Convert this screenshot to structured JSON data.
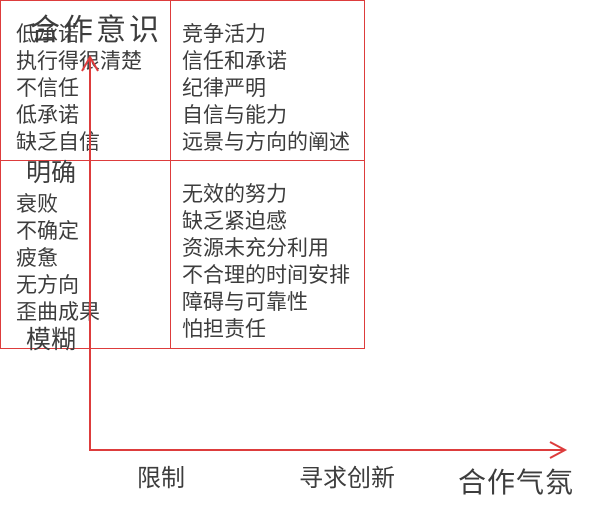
{
  "diagram": {
    "y_axis_title": "合作意识",
    "x_axis_title": "合作气氛",
    "y_axis_labels": {
      "top": "明确",
      "bottom": "模糊"
    },
    "x_axis_labels": {
      "left": "限制",
      "right": "寻求创新"
    },
    "quadrants": {
      "top_left": [
        "低承诺",
        "执行得很清楚",
        "不信任",
        "低承诺",
        "缺乏自信"
      ],
      "top_right": [
        "竞争活力",
        "信任和承诺",
        "纪律严明",
        "自信与能力",
        "远景与方向的阐述"
      ],
      "bottom_left": [
        "衰败",
        "不确定",
        "疲惫",
        "无方向",
        "歪曲成果"
      ],
      "bottom_right": [
        "无效的努力",
        "缺乏紧迫感",
        "资源未充分利用",
        "不合理的时间安排",
        "障碍与可靠性",
        "怕担责任"
      ]
    },
    "colors": {
      "line": "#dd3c3c",
      "text": "#3d3d3d"
    }
  }
}
